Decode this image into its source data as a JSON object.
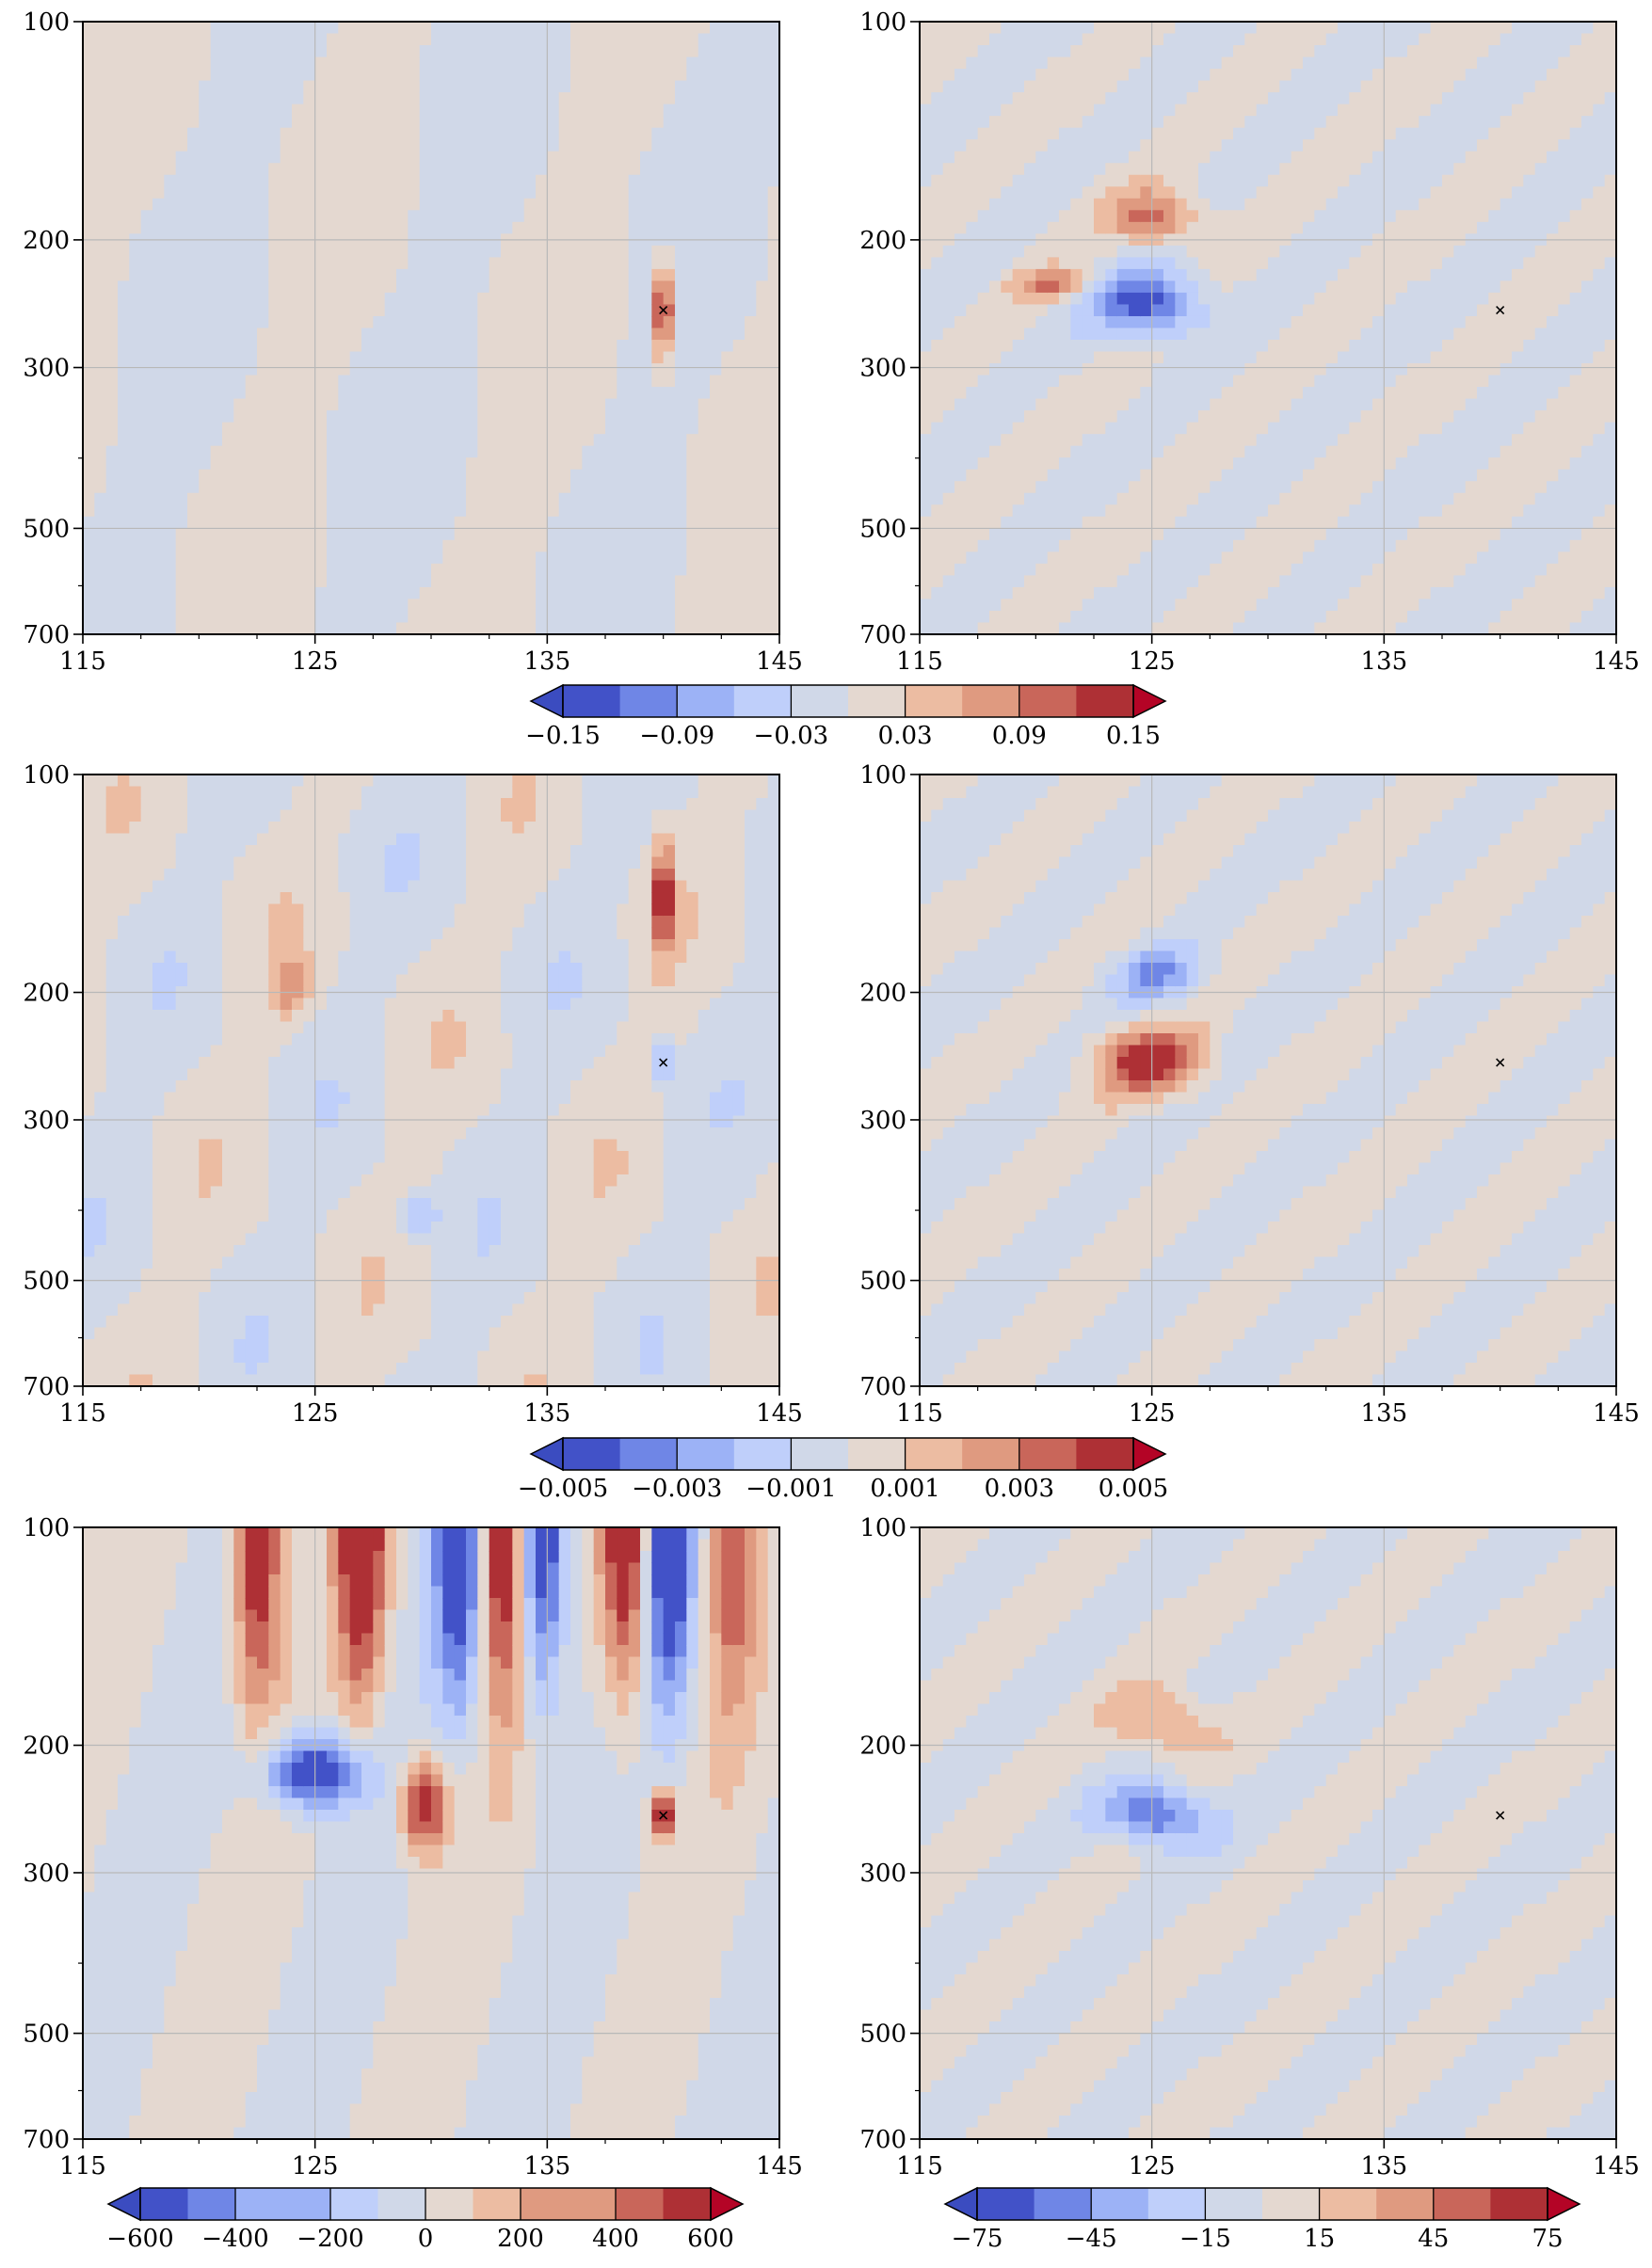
{
  "chart_data": [
    {
      "type": "contour",
      "panel": "row1-left",
      "x_ticks": [
        115,
        125,
        135,
        145
      ],
      "y_ticks": [
        100,
        200,
        300,
        500,
        700
      ],
      "xlim": [
        115,
        145
      ],
      "ylim": [
        700,
        100
      ],
      "y_scale": "log",
      "grid": true,
      "marker": {
        "x": 140,
        "y": 250,
        "symbol": "x"
      },
      "colormap": "coolwarm",
      "levels": [
        -0.15,
        -0.12,
        -0.09,
        -0.06,
        -0.03,
        0.0,
        0.03,
        0.06,
        0.09,
        0.12,
        0.15
      ],
      "colorbar_labels": [
        "−0.15",
        "−0.09",
        "−0.03",
        "0.03",
        "0.09",
        "0.15"
      ],
      "colorbar_extend": "both"
    },
    {
      "type": "contour",
      "panel": "row1-right",
      "x_ticks": [
        115,
        125,
        135,
        145
      ],
      "y_ticks": [
        100,
        200,
        300,
        500,
        700
      ],
      "xlim": [
        115,
        145
      ],
      "ylim": [
        700,
        100
      ],
      "y_scale": "log",
      "grid": true,
      "marker": {
        "x": 140,
        "y": 250,
        "symbol": "x"
      },
      "colormap": "coolwarm",
      "shared_colorbar": "row1"
    },
    {
      "type": "contour",
      "panel": "row2-left",
      "x_ticks": [
        115,
        125,
        135,
        145
      ],
      "y_ticks": [
        100,
        200,
        300,
        500,
        700
      ],
      "xlim": [
        115,
        145
      ],
      "ylim": [
        700,
        100
      ],
      "y_scale": "log",
      "grid": true,
      "marker": {
        "x": 140,
        "y": 250,
        "symbol": "x"
      },
      "colormap": "coolwarm",
      "levels": [
        -0.005,
        -0.004,
        -0.003,
        -0.002,
        -0.001,
        0.0,
        0.001,
        0.002,
        0.003,
        0.004,
        0.005
      ],
      "colorbar_labels": [
        "−0.005",
        "−0.003",
        "−0.001",
        "0.001",
        "0.003",
        "0.005"
      ],
      "colorbar_extend": "both"
    },
    {
      "type": "contour",
      "panel": "row2-right",
      "x_ticks": [
        115,
        125,
        135,
        145
      ],
      "y_ticks": [
        100,
        200,
        300,
        500,
        700
      ],
      "xlim": [
        115,
        145
      ],
      "ylim": [
        700,
        100
      ],
      "y_scale": "log",
      "grid": true,
      "marker": {
        "x": 140,
        "y": 250,
        "symbol": "x"
      },
      "colormap": "coolwarm",
      "shared_colorbar": "row2"
    },
    {
      "type": "contour",
      "panel": "row3-left",
      "x_ticks": [
        115,
        125,
        135,
        145
      ],
      "y_ticks": [
        100,
        200,
        300,
        500,
        700
      ],
      "xlim": [
        115,
        145
      ],
      "ylim": [
        700,
        100
      ],
      "y_scale": "log",
      "grid": true,
      "marker": {
        "x": 140,
        "y": 250,
        "symbol": "x"
      },
      "colormap": "coolwarm",
      "levels": [
        -600,
        -500,
        -400,
        -300,
        -200,
        -100,
        0,
        100,
        200,
        300,
        400,
        500,
        600
      ],
      "colorbar_labels": [
        "−600",
        "−400",
        "−200",
        "0",
        "200",
        "400",
        "600"
      ],
      "colorbar_extend": "both"
    },
    {
      "type": "contour",
      "panel": "row3-right",
      "x_ticks": [
        115,
        125,
        135,
        145
      ],
      "y_ticks": [
        100,
        200,
        300,
        500,
        700
      ],
      "xlim": [
        115,
        145
      ],
      "ylim": [
        700,
        100
      ],
      "y_scale": "log",
      "grid": true,
      "marker": {
        "x": 140,
        "y": 250,
        "symbol": "x"
      },
      "colormap": "coolwarm",
      "levels": [
        -75,
        -60,
        -45,
        -30,
        -15,
        0,
        15,
        30,
        45,
        60,
        75
      ],
      "colorbar_labels": [
        "−75",
        "−45",
        "−15",
        "15",
        "45",
        "75"
      ],
      "colorbar_extend": "both"
    }
  ],
  "colors": {
    "neg": [
      "#4252c8",
      "#6f86e6",
      "#9cb2f6",
      "#bfcffa"
    ],
    "near_neg": "#d0d8e8",
    "near_pos": "#e4d8d0",
    "pos": [
      "#ecbca2",
      "#df9a80",
      "#c9665a",
      "#ae3035"
    ],
    "extend_low": "#3b4cc0",
    "extend_high": "#b40426"
  }
}
